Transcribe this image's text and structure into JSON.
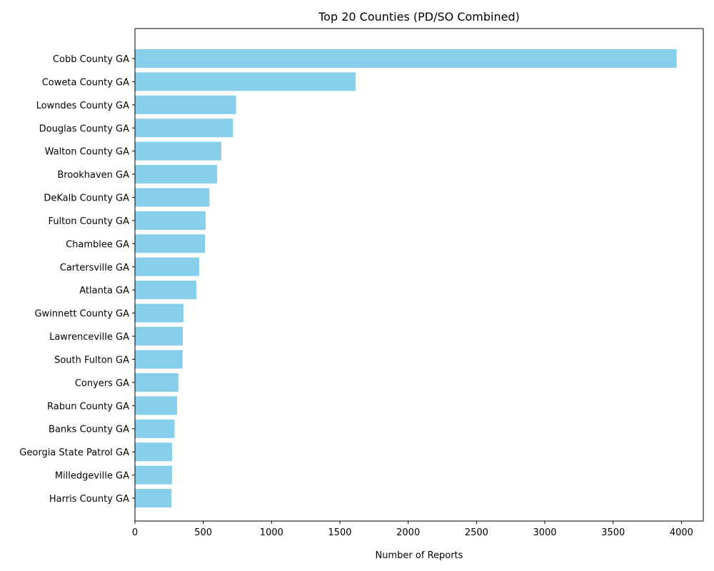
{
  "chart_data": {
    "type": "bar",
    "orientation": "horizontal",
    "title": "Top 20 Counties (PD/SO Combined)",
    "xlabel": "Number of Reports",
    "ylabel": "",
    "xlim": [
      0,
      4160
    ],
    "xticks": [
      0,
      500,
      1000,
      1500,
      2000,
      2500,
      3000,
      3500,
      4000
    ],
    "grid": false,
    "bar_color": "#87ceeb",
    "categories": [
      "Cobb County GA",
      "Coweta County GA",
      "Lowndes County GA",
      "Douglas County GA",
      "Walton County GA",
      "Brookhaven GA",
      "DeKalb County GA",
      "Fulton County GA",
      "Chamblee GA",
      "Cartersville GA",
      "Atlanta GA",
      "Gwinnett County GA",
      "Lawrenceville GA",
      "South Fulton GA",
      "Conyers GA",
      "Rabun County GA",
      "Banks County GA",
      "Georgia State Patrol GA",
      "Milledgeville GA",
      "Harris County GA"
    ],
    "values": [
      3965,
      1615,
      740,
      718,
      632,
      602,
      545,
      518,
      513,
      470,
      450,
      355,
      350,
      349,
      318,
      308,
      290,
      272,
      271,
      268
    ]
  }
}
